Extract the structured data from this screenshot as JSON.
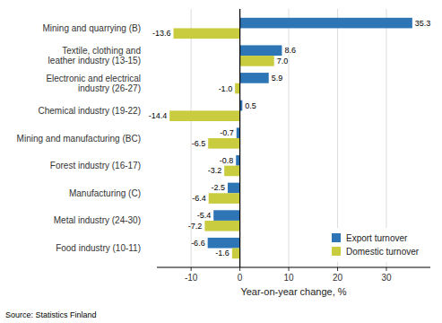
{
  "chart_data": {
    "type": "bar",
    "orientation": "horizontal",
    "categories": [
      "Food industry (10-11)",
      "Metal industry (24-30)",
      "Manufacturing (C)",
      "Forest industry (16-17)",
      "Mining and manufacturing (BC)",
      "Chemical industry (19-22)",
      "Electronic and electrical\nindustry (26-27)",
      "Textile, clothing and\nleather industry (13-15)",
      "Mining and quarrying (B)"
    ],
    "series": [
      {
        "name": "Export turnover",
        "color": "#2E75B6",
        "values": [
          -6.6,
          -5.4,
          -2.5,
          -0.8,
          -0.7,
          0.5,
          5.9,
          8.6,
          35.3
        ]
      },
      {
        "name": "Domestic turnover",
        "color": "#C9CC3F",
        "values": [
          -1.6,
          -7.2,
          -6.4,
          -3.2,
          -6.5,
          -14.4,
          -1.0,
          7.0,
          -13.6
        ],
        "value_labels": [
          "-1.6",
          "-7.2",
          "-6.4",
          "-3.2",
          "-6.5",
          "-14.4",
          "-1.0",
          "7.0",
          "-13.6"
        ]
      }
    ],
    "xlabel": "Year-on-year change, %",
    "xlim": [
      -17,
      39
    ],
    "xticks": [
      -10,
      0,
      10,
      20,
      30
    ],
    "grid": true,
    "legend": "lower right",
    "data_labels": true,
    "annotations": [
      "Source: Statistics Finland"
    ]
  }
}
